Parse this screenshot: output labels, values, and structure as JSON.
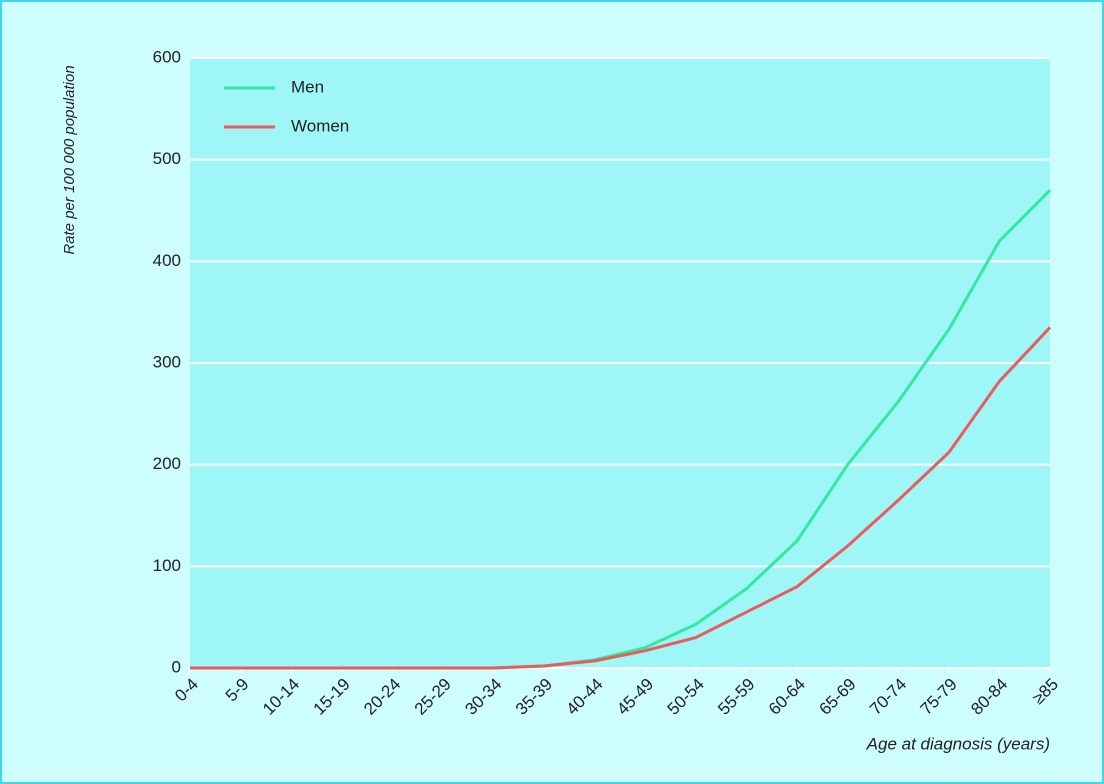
{
  "chart_data": {
    "type": "line",
    "y_label": "Rate per 100 000 population",
    "x_label": "Age at diagnosis (years)",
    "categories": [
      "0-4",
      "5-9",
      "10-14",
      "15-19",
      "20-24",
      "25-29",
      "30-34",
      "35-39",
      "40-44",
      "45-49",
      "50-54",
      "55-59",
      "60-64",
      "65-69",
      "70-74",
      "75-79",
      "80-84",
      "≥85"
    ],
    "series": [
      {
        "name": "Men",
        "color": "#33e8a2",
        "values": [
          0,
          0,
          0,
          0,
          0,
          0,
          0,
          2,
          8,
          20,
          43,
          78,
          125,
          200,
          262,
          333,
          420,
          470
        ]
      },
      {
        "name": "Women",
        "color": "#ea5b5b",
        "values": [
          0,
          0,
          0,
          0,
          0,
          0,
          0,
          2,
          7,
          17,
          30,
          55,
          80,
          120,
          165,
          212,
          282,
          335
        ]
      }
    ],
    "ylim": [
      0,
      600
    ],
    "yticks": [
      0,
      100,
      200,
      300,
      400,
      500,
      600
    ],
    "grid": true,
    "legend": "top-left"
  }
}
